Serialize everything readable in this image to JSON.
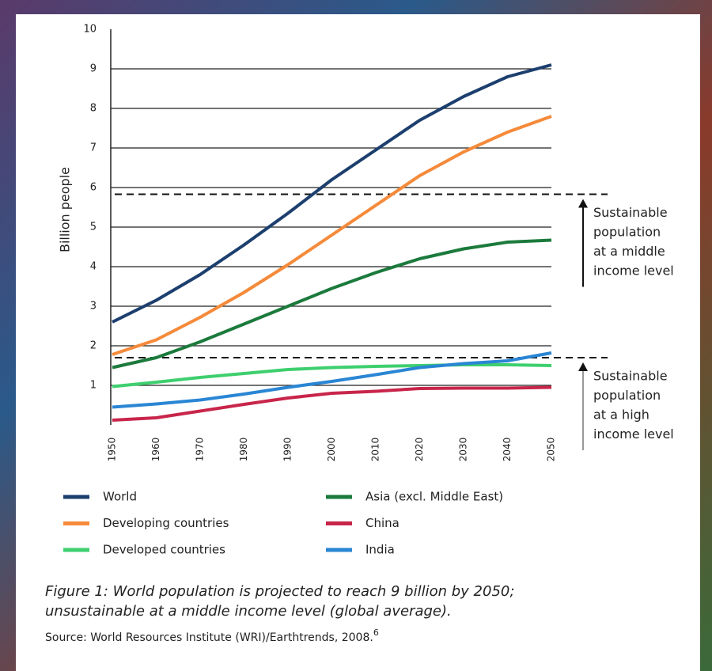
{
  "chart_data": {
    "type": "line",
    "ylabel": "Billion people",
    "x": [
      1950,
      1960,
      1970,
      1980,
      1990,
      2000,
      2010,
      2020,
      2030,
      2040,
      2050
    ],
    "xlim": [
      1950,
      2050
    ],
    "xticks": [
      1950,
      1960,
      1970,
      1980,
      1990,
      2000,
      2010,
      2020,
      2030,
      2040,
      2050
    ],
    "ylim": [
      0,
      10
    ],
    "yticks": [
      1,
      2,
      3,
      4,
      5,
      6,
      7,
      8,
      9,
      10
    ],
    "grid": true,
    "series": [
      {
        "name": "World",
        "color": "#1c3f6e",
        "values": [
          2.6,
          3.15,
          3.8,
          4.55,
          5.35,
          6.2,
          6.95,
          7.7,
          8.3,
          8.8,
          9.1
        ]
      },
      {
        "name": "Asia (excl. Middle East)",
        "color": "#1b7a3c",
        "values": [
          1.45,
          1.7,
          2.1,
          2.55,
          3.0,
          3.45,
          3.85,
          4.2,
          4.45,
          4.62,
          4.67
        ]
      },
      {
        "name": "Developing countries",
        "color": "#f58a3a",
        "values": [
          1.78,
          2.15,
          2.72,
          3.35,
          4.05,
          4.8,
          5.55,
          6.3,
          6.9,
          7.4,
          7.8
        ]
      },
      {
        "name": "China",
        "color": "#c8254a",
        "values": [
          0.12,
          0.18,
          0.35,
          0.52,
          0.68,
          0.8,
          0.85,
          0.92,
          0.93,
          0.93,
          0.95
        ]
      },
      {
        "name": "Developed countries",
        "color": "#3ecf6e",
        "values": [
          0.97,
          1.08,
          1.2,
          1.3,
          1.4,
          1.45,
          1.48,
          1.5,
          1.52,
          1.52,
          1.5
        ]
      },
      {
        "name": "India",
        "color": "#2a86d4",
        "values": [
          0.45,
          0.53,
          0.63,
          0.78,
          0.95,
          1.1,
          1.27,
          1.45,
          1.55,
          1.62,
          1.82
        ]
      }
    ],
    "annotations": [
      {
        "value": 5.83,
        "lines": [
          "Sustainable",
          "population",
          "at a middle",
          "income level"
        ]
      },
      {
        "value": 1.7,
        "lines": [
          "Sustainable",
          "population",
          "at a high",
          "income level"
        ]
      }
    ],
    "caption": [
      "Figure 1: World population is projected to reach 9 billion by 2050;",
      "unsustainable at a middle income level (global average)."
    ],
    "source": "Source: World Resources Institute (WRI)/Earthtrends, 2008.",
    "source_note": "6"
  }
}
